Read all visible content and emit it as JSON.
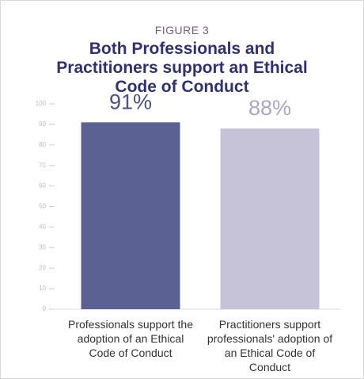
{
  "chart_data": {
    "type": "bar",
    "subtitle": "FIGURE 3",
    "title": "Both Professionals and Practitioners support an Ethical Code of Conduct",
    "categories": [
      "Professionals support the adoption of an Ethical Code of Conduct",
      "Practitioners support professionals' adoption of an Ethical Code of Conduct"
    ],
    "values": [
      91,
      88
    ],
    "value_labels": [
      "91%",
      "88%"
    ],
    "colors": [
      "#5c6194",
      "#c6c3d9"
    ],
    "label_colors": [
      "#4b5088",
      "#aaa6c6"
    ],
    "ylim": [
      0,
      100
    ],
    "yticks": [
      0,
      10,
      20,
      30,
      40,
      50,
      60,
      70,
      80,
      90,
      100
    ],
    "grid": false
  }
}
